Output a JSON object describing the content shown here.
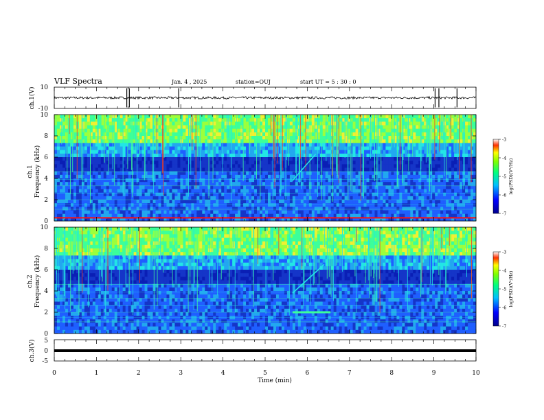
{
  "header": {
    "title": "VLF Spectra",
    "date": "Jan. 4 , 2025",
    "station": "station=OUJ",
    "start": "start UT = 5 : 30 : 0"
  },
  "colors": {
    "spectrum_low": "#00008b",
    "spectrum_mid": "#1f5fff",
    "spectrum_high": "#00ff7f",
    "spectrum_peak": "#ff0000",
    "axes": "#000000"
  },
  "chart_data": [
    {
      "type": "line",
      "panel": "ch1-waveform",
      "ylabel": "ch.1(V)",
      "ylim": [
        -10,
        10
      ],
      "yticks": [
        "10",
        "-10"
      ],
      "xlim": [
        0,
        10
      ],
      "baseline": 0,
      "spikes_at_min": [
        1.72,
        1.78,
        2.95,
        9.03,
        9.12,
        9.55
      ]
    },
    {
      "type": "heatmap",
      "panel": "ch1-spectrogram",
      "ylabel": "ch.1\nFrequency (kHz)",
      "ylim": [
        0,
        10
      ],
      "yticks": [
        "0",
        "2",
        "4",
        "6",
        "8",
        "10"
      ],
      "xlim": [
        0,
        10
      ],
      "colorbar": {
        "label": "log(PSD)(V²/Hz)",
        "range": [
          -7,
          -3
        ],
        "ticks": [
          "-3",
          "-4",
          "-5",
          "-6",
          "-7"
        ]
      },
      "features": {
        "red_line_khz": 0.3,
        "sweep_start": [
          5.65,
          3.8
        ],
        "sweep_end": [
          6.2,
          6.3
        ]
      }
    },
    {
      "type": "heatmap",
      "panel": "ch2-spectrogram",
      "ylabel": "ch.2\nFrequency (kHz)",
      "ylim": [
        0,
        10
      ],
      "yticks": [
        "0",
        "2",
        "4",
        "6",
        "8",
        "10"
      ],
      "xlim": [
        0,
        10
      ],
      "colorbar": {
        "label": "log(PSD)(V²/Hz)",
        "range": [
          -7,
          -3
        ],
        "ticks": [
          "-3",
          "-4",
          "-5",
          "-6",
          "-7"
        ]
      },
      "features": {
        "band_khz": 2,
        "band_x": [
          5.65,
          6.55
        ],
        "sweep_start": [
          5.65,
          3.8
        ],
        "sweep_end": [
          6.4,
          6.5
        ]
      }
    },
    {
      "type": "line",
      "panel": "ch3-waveform",
      "ylabel": "ch.3(V)",
      "ylim": [
        -5,
        5
      ],
      "yticks": [
        "5",
        "0",
        "-5"
      ],
      "xlim": [
        0,
        10
      ],
      "level": -1,
      "xlabel": "Time (min)",
      "xticks": [
        "0",
        "1",
        "2",
        "3",
        "4",
        "5",
        "6",
        "7",
        "8",
        "9",
        "10"
      ]
    }
  ]
}
